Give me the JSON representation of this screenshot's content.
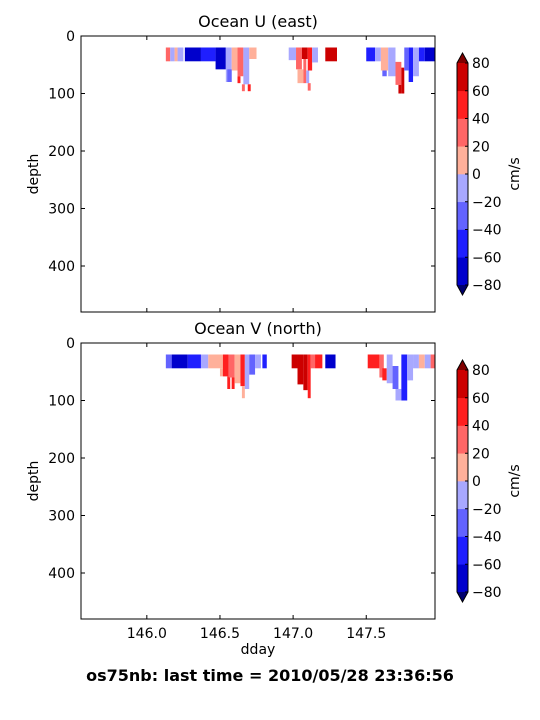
{
  "suptitle": "os75nb: last time = 2010/05/28 23:36:56",
  "colorbar": {
    "label": "cm/s",
    "ticks": [
      -80,
      -60,
      -40,
      -20,
      0,
      20,
      40,
      60,
      80
    ],
    "levels": [
      -80,
      -60,
      -40,
      -20,
      0,
      20,
      40,
      60,
      80
    ],
    "colors": [
      "#0000cc",
      "#1f1fff",
      "#6363ff",
      "#a8a8ff",
      "#ffb09a",
      "#ff6666",
      "#ff1f1f",
      "#cc0000"
    ],
    "under_color": "#00006e",
    "over_color": "#800000"
  },
  "chart_data": [
    {
      "type": "heatmap",
      "title": "Ocean U (east)",
      "xlabel": "",
      "ylabel": "depth",
      "xlim": [
        145.55,
        147.97
      ],
      "ylim": [
        480,
        0
      ],
      "xticks": [
        146.0,
        146.5,
        147.0,
        147.5
      ],
      "yticks": [
        0,
        100,
        200,
        300,
        400
      ],
      "show_xticklabels": false,
      "grid": false,
      "cells": [
        {
          "x0": 146.13,
          "x1": 146.16,
          "y0": 20,
          "y1": 44,
          "v": 30
        },
        {
          "x0": 146.16,
          "x1": 146.19,
          "y0": 20,
          "y1": 44,
          "v": -20
        },
        {
          "x0": 146.19,
          "x1": 146.21,
          "y0": 20,
          "y1": 44,
          "v": 10
        },
        {
          "x0": 146.21,
          "x1": 146.25,
          "y0": 20,
          "y1": 44,
          "v": -10
        },
        {
          "x0": 146.26,
          "x1": 146.37,
          "y0": 20,
          "y1": 44,
          "v": -70
        },
        {
          "x0": 146.37,
          "x1": 146.47,
          "y0": 20,
          "y1": 44,
          "v": -55
        },
        {
          "x0": 146.47,
          "x1": 146.54,
          "y0": 20,
          "y1": 58,
          "v": -70
        },
        {
          "x0": 146.54,
          "x1": 146.58,
          "y0": 20,
          "y1": 80,
          "v": -10
        },
        {
          "x0": 146.58,
          "x1": 146.62,
          "y0": 20,
          "y1": 60,
          "v": 10
        },
        {
          "x0": 146.55,
          "x1": 146.58,
          "y0": 58,
          "y1": 80,
          "v": -30
        },
        {
          "x0": 146.62,
          "x1": 146.66,
          "y0": 20,
          "y1": 70,
          "v": 30
        },
        {
          "x0": 146.62,
          "x1": 146.64,
          "y0": 70,
          "y1": 82,
          "v": 50
        },
        {
          "x0": 146.66,
          "x1": 146.7,
          "y0": 20,
          "y1": 84,
          "v": -15
        },
        {
          "x0": 146.7,
          "x1": 146.75,
          "y0": 20,
          "y1": 40,
          "v": 15
        },
        {
          "x0": 146.65,
          "x1": 146.67,
          "y0": 84,
          "y1": 96,
          "v": 30
        },
        {
          "x0": 146.69,
          "x1": 146.71,
          "y0": 84,
          "y1": 96,
          "v": 50
        },
        {
          "x0": 146.97,
          "x1": 147.02,
          "y0": 20,
          "y1": 42,
          "v": -20
        },
        {
          "x0": 147.02,
          "x1": 147.06,
          "y0": 20,
          "y1": 58,
          "v": 30
        },
        {
          "x0": 147.03,
          "x1": 147.07,
          "y0": 58,
          "y1": 82,
          "v": 10
        },
        {
          "x0": 147.06,
          "x1": 147.1,
          "y0": 20,
          "y1": 40,
          "v": 60
        },
        {
          "x0": 147.07,
          "x1": 147.09,
          "y0": 40,
          "y1": 82,
          "v": 30
        },
        {
          "x0": 147.09,
          "x1": 147.11,
          "y0": 60,
          "y1": 82,
          "v": -10
        },
        {
          "x0": 147.1,
          "x1": 147.13,
          "y0": 20,
          "y1": 60,
          "v": 50
        },
        {
          "x0": 147.1,
          "x1": 147.12,
          "y0": 82,
          "y1": 95,
          "v": 30
        },
        {
          "x0": 147.13,
          "x1": 147.17,
          "y0": 20,
          "y1": 46,
          "v": -20
        },
        {
          "x0": 147.22,
          "x1": 147.3,
          "y0": 20,
          "y1": 44,
          "v": 60
        },
        {
          "x0": 147.5,
          "x1": 147.56,
          "y0": 20,
          "y1": 44,
          "v": -50
        },
        {
          "x0": 147.56,
          "x1": 147.6,
          "y0": 20,
          "y1": 44,
          "v": -15
        },
        {
          "x0": 147.6,
          "x1": 147.65,
          "y0": 20,
          "y1": 60,
          "v": 15
        },
        {
          "x0": 147.61,
          "x1": 147.64,
          "y0": 60,
          "y1": 70,
          "v": -30
        },
        {
          "x0": 147.65,
          "x1": 147.7,
          "y0": 20,
          "y1": 70,
          "v": -15
        },
        {
          "x0": 147.7,
          "x1": 147.74,
          "y0": 45,
          "y1": 85,
          "v": 35
        },
        {
          "x0": 147.72,
          "x1": 147.74,
          "y0": 85,
          "y1": 100,
          "v": 60
        },
        {
          "x0": 147.74,
          "x1": 147.76,
          "y0": 55,
          "y1": 100,
          "v": 70
        },
        {
          "x0": 147.76,
          "x1": 147.79,
          "y0": 20,
          "y1": 60,
          "v": -30
        },
        {
          "x0": 147.79,
          "x1": 147.82,
          "y0": 20,
          "y1": 80,
          "v": -50
        },
        {
          "x0": 147.82,
          "x1": 147.86,
          "y0": 20,
          "y1": 70,
          "v": -15
        },
        {
          "x0": 147.86,
          "x1": 147.9,
          "y0": 20,
          "y1": 44,
          "v": -55
        },
        {
          "x0": 147.9,
          "x1": 147.97,
          "y0": 20,
          "y1": 44,
          "v": -70
        }
      ]
    },
    {
      "type": "heatmap",
      "title": "Ocean V (north)",
      "xlabel": "dday",
      "ylabel": "depth",
      "xlim": [
        145.55,
        147.97
      ],
      "ylim": [
        480,
        0
      ],
      "xticks": [
        146.0,
        146.5,
        147.0,
        147.5
      ],
      "yticks": [
        0,
        100,
        200,
        300,
        400
      ],
      "show_xticklabels": true,
      "grid": false,
      "cells": [
        {
          "x0": 146.13,
          "x1": 146.17,
          "y0": 20,
          "y1": 44,
          "v": -35
        },
        {
          "x0": 146.17,
          "x1": 146.28,
          "y0": 20,
          "y1": 44,
          "v": -70
        },
        {
          "x0": 146.28,
          "x1": 146.37,
          "y0": 20,
          "y1": 44,
          "v": -55
        },
        {
          "x0": 146.37,
          "x1": 146.42,
          "y0": 20,
          "y1": 44,
          "v": -15
        },
        {
          "x0": 146.42,
          "x1": 146.52,
          "y0": 20,
          "y1": 44,
          "v": 15
        },
        {
          "x0": 146.5,
          "x1": 146.55,
          "y0": 44,
          "y1": 58,
          "v": 15
        },
        {
          "x0": 146.52,
          "x1": 146.56,
          "y0": 20,
          "y1": 58,
          "v": 45
        },
        {
          "x0": 146.55,
          "x1": 146.57,
          "y0": 58,
          "y1": 80,
          "v": 50
        },
        {
          "x0": 146.56,
          "x1": 146.6,
          "y0": 20,
          "y1": 60,
          "v": 35
        },
        {
          "x0": 146.58,
          "x1": 146.6,
          "y0": 60,
          "y1": 80,
          "v": 50
        },
        {
          "x0": 146.6,
          "x1": 146.64,
          "y0": 20,
          "y1": 70,
          "v": 10
        },
        {
          "x0": 146.64,
          "x1": 146.67,
          "y0": 20,
          "y1": 75,
          "v": 40
        },
        {
          "x0": 146.65,
          "x1": 146.67,
          "y0": 75,
          "y1": 96,
          "v": 10
        },
        {
          "x0": 146.67,
          "x1": 146.7,
          "y0": 20,
          "y1": 80,
          "v": -15
        },
        {
          "x0": 146.7,
          "x1": 146.74,
          "y0": 20,
          "y1": 55,
          "v": -40
        },
        {
          "x0": 146.74,
          "x1": 146.78,
          "y0": 20,
          "y1": 44,
          "v": -15
        },
        {
          "x0": 146.79,
          "x1": 146.82,
          "y0": 20,
          "y1": 44,
          "v": -55
        },
        {
          "x0": 146.99,
          "x1": 147.03,
          "y0": 20,
          "y1": 44,
          "v": 70
        },
        {
          "x0": 147.03,
          "x1": 147.07,
          "y0": 20,
          "y1": 72,
          "v": 70
        },
        {
          "x0": 147.07,
          "x1": 147.1,
          "y0": 20,
          "y1": 82,
          "v": 75
        },
        {
          "x0": 147.1,
          "x1": 147.12,
          "y0": 20,
          "y1": 96,
          "v": 50
        },
        {
          "x0": 147.12,
          "x1": 147.15,
          "y0": 20,
          "y1": 44,
          "v": 20
        },
        {
          "x0": 147.15,
          "x1": 147.2,
          "y0": 20,
          "y1": 44,
          "v": 55
        },
        {
          "x0": 147.22,
          "x1": 147.29,
          "y0": 20,
          "y1": 44,
          "v": -70
        },
        {
          "x0": 147.51,
          "x1": 147.59,
          "y0": 20,
          "y1": 44,
          "v": 50
        },
        {
          "x0": 147.59,
          "x1": 147.62,
          "y0": 20,
          "y1": 60,
          "v": 30
        },
        {
          "x0": 147.61,
          "x1": 147.64,
          "y0": 44,
          "y1": 65,
          "v": 50
        },
        {
          "x0": 147.64,
          "x1": 147.68,
          "y0": 20,
          "y1": 70,
          "v": -15
        },
        {
          "x0": 147.68,
          "x1": 147.72,
          "y0": 40,
          "y1": 80,
          "v": -35
        },
        {
          "x0": 147.7,
          "x1": 147.74,
          "y0": 80,
          "y1": 100,
          "v": -15
        },
        {
          "x0": 147.74,
          "x1": 147.78,
          "y0": 20,
          "y1": 100,
          "v": -55
        },
        {
          "x0": 147.78,
          "x1": 147.82,
          "y0": 20,
          "y1": 65,
          "v": -20
        },
        {
          "x0": 147.82,
          "x1": 147.86,
          "y0": 20,
          "y1": 44,
          "v": -15
        },
        {
          "x0": 147.86,
          "x1": 147.9,
          "y0": 20,
          "y1": 44,
          "v": 15
        },
        {
          "x0": 147.9,
          "x1": 147.94,
          "y0": 20,
          "y1": 44,
          "v": -15
        },
        {
          "x0": 147.94,
          "x1": 147.97,
          "y0": 20,
          "y1": 44,
          "v": 30
        }
      ]
    }
  ]
}
